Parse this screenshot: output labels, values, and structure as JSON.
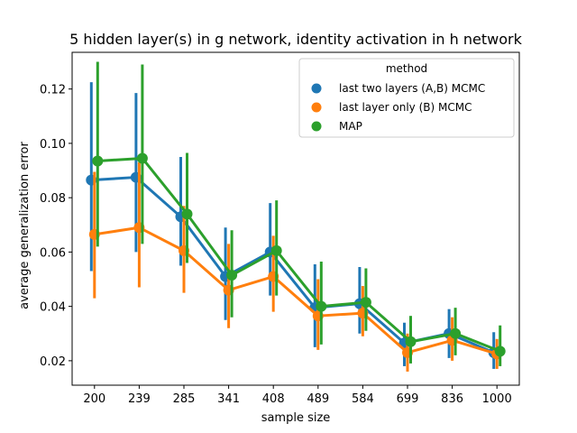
{
  "chart_data": {
    "type": "line",
    "title": "5 hidden layer(s) in g network, identity activation in h network",
    "xlabel": "sample size",
    "ylabel": "average generalization error",
    "categories": [
      "200",
      "239",
      "285",
      "341",
      "408",
      "489",
      "584",
      "699",
      "836",
      "1000"
    ],
    "ylim": [
      0.011,
      0.1335
    ],
    "yticks": [
      "0.02",
      "0.04",
      "0.06",
      "0.08",
      "0.10",
      "0.12"
    ],
    "legend": {
      "title": "method",
      "position": "top-right"
    },
    "series": [
      {
        "name": "last two layers (A,B) MCMC",
        "color": "#1f77b4",
        "values": [
          0.0865,
          0.0875,
          0.073,
          0.051,
          0.06,
          0.0395,
          0.041,
          0.0265,
          0.03,
          0.023
        ],
        "lower": [
          0.053,
          0.06,
          0.055,
          0.035,
          0.044,
          0.025,
          0.03,
          0.018,
          0.021,
          0.017
        ],
        "upper": [
          0.1225,
          0.1185,
          0.095,
          0.069,
          0.078,
          0.0555,
          0.0545,
          0.034,
          0.039,
          0.0305
        ]
      },
      {
        "name": "last layer only (B) MCMC",
        "color": "#ff7f0e",
        "values": [
          0.0665,
          0.069,
          0.0605,
          0.046,
          0.051,
          0.0365,
          0.0375,
          0.023,
          0.0275,
          0.0225
        ],
        "lower": [
          0.043,
          0.047,
          0.045,
          0.032,
          0.038,
          0.024,
          0.029,
          0.016,
          0.02,
          0.017
        ],
        "upper": [
          0.0895,
          0.093,
          0.077,
          0.063,
          0.066,
          0.05,
          0.0475,
          0.03,
          0.036,
          0.028
        ]
      },
      {
        "name": "MAP",
        "color": "#2ca02c",
        "values": [
          0.0935,
          0.0945,
          0.074,
          0.0515,
          0.0605,
          0.04,
          0.0415,
          0.027,
          0.03,
          0.0235
        ],
        "lower": [
          0.062,
          0.063,
          0.056,
          0.036,
          0.044,
          0.026,
          0.031,
          0.019,
          0.022,
          0.018
        ],
        "upper": [
          0.13,
          0.129,
          0.0965,
          0.068,
          0.079,
          0.0565,
          0.054,
          0.0365,
          0.0395,
          0.033
        ]
      }
    ]
  }
}
